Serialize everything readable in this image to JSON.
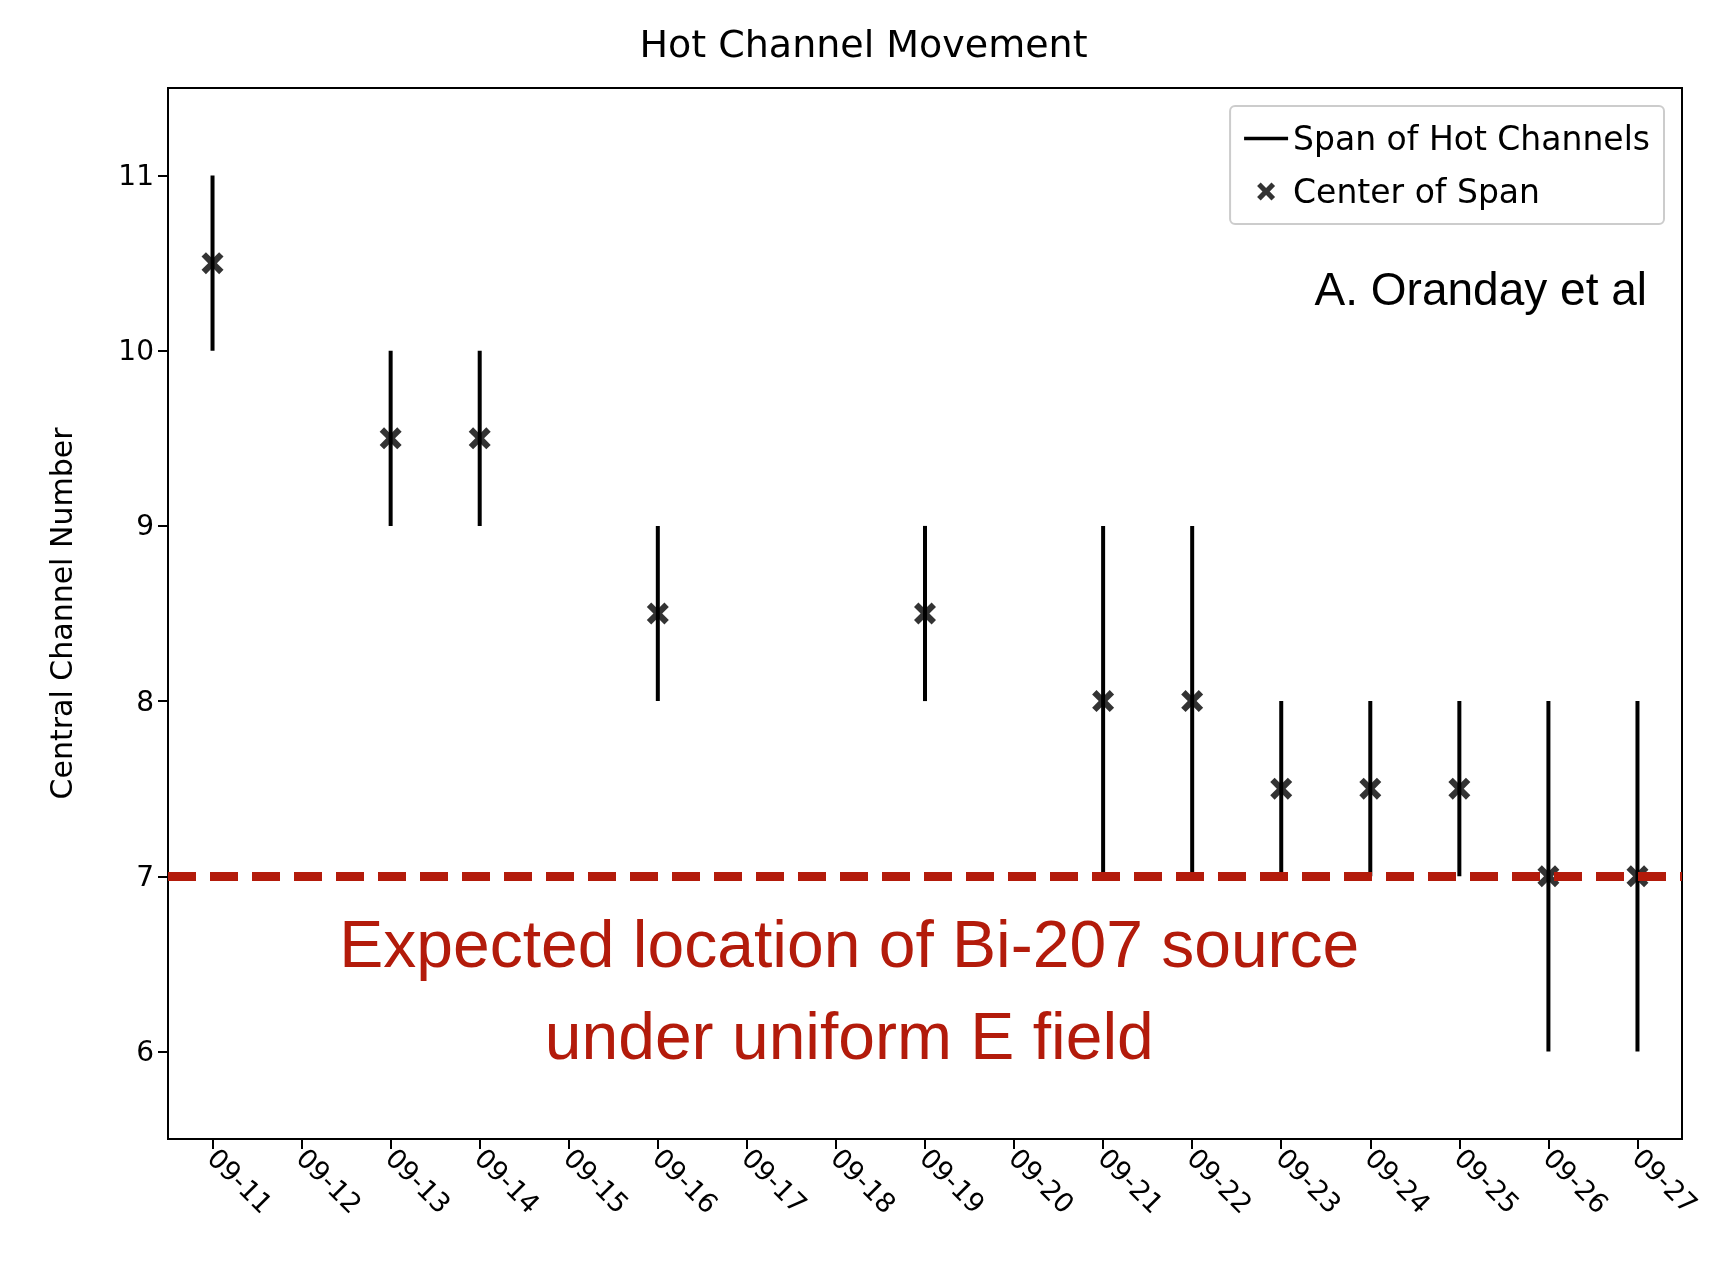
{
  "chart_data": {
    "type": "scatter",
    "title": "Hot Channel Movement",
    "ylabel": "Central Channel Number",
    "categories": [
      "09-11",
      "09-12",
      "09-13",
      "09-14",
      "09-15",
      "09-16",
      "09-17",
      "09-18",
      "09-19",
      "09-20",
      "09-21",
      "09-22",
      "09-23",
      "09-24",
      "09-25",
      "09-26",
      "09-27"
    ],
    "series": [
      {
        "name": "Span of Hot Channels",
        "type": "bar",
        "color": "#000000",
        "base": [
          10,
          null,
          9,
          9,
          null,
          8,
          null,
          null,
          8,
          null,
          7,
          7,
          7,
          7,
          7,
          6,
          6
        ],
        "values": [
          1,
          null,
          1,
          1,
          null,
          1,
          null,
          null,
          1,
          null,
          2,
          2,
          1,
          1,
          1,
          2,
          2
        ]
      },
      {
        "name": "Center of Span",
        "color": "#000000",
        "marker": "cross",
        "values": [
          10.5,
          null,
          9.5,
          9.5,
          null,
          8.5,
          null,
          null,
          8.5,
          null,
          8,
          8,
          7.5,
          7.5,
          7.5,
          7,
          7
        ]
      }
    ],
    "ylim": [
      5.5,
      11.5
    ],
    "yticks": [
      6,
      7,
      8,
      9,
      10,
      11
    ],
    "grid": false,
    "legend": "top right",
    "ref_lines": [
      {
        "axis": "y",
        "value": 7,
        "label": "Expected location of Bi-207 source\nunder uniform E field",
        "color": "#b31b0b",
        "line_style": "dashed"
      }
    ],
    "annotations": [
      "A. Oranday et al"
    ]
  }
}
